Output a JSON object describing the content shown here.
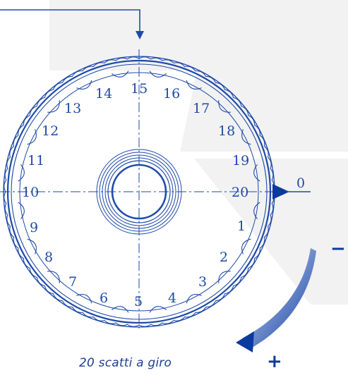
{
  "dial": {
    "numbers": [
      "0",
      "1",
      "2",
      "3",
      "4",
      "5",
      "6",
      "7",
      "8",
      "9",
      "10",
      "11",
      "12",
      "13",
      "14",
      "15",
      "16",
      "17",
      "18",
      "19",
      "20"
    ],
    "pointer_label": "0",
    "minus_label": "−",
    "plus_label": "+"
  },
  "caption": "20 scatti a giro",
  "colors": {
    "line": "#1f4aa8",
    "dark": "#0b3a9e",
    "panel": "#f2f2f2"
  }
}
